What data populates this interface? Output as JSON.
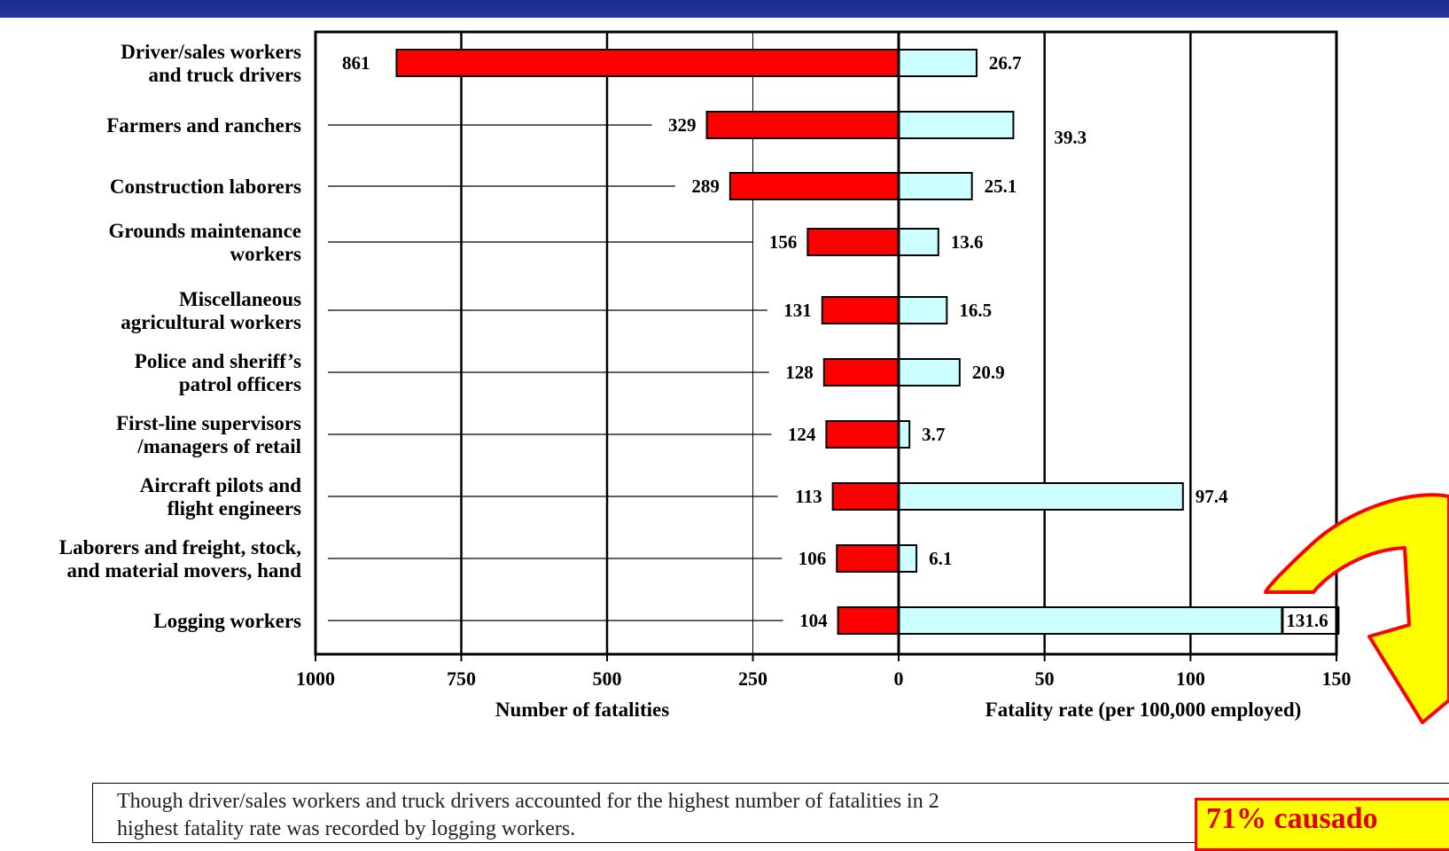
{
  "chart_data": {
    "type": "bar",
    "orientation": "horizontal",
    "layout": "back-to-back",
    "categories": [
      [
        "Driver/sales workers",
        "and truck drivers"
      ],
      [
        "Farmers and ranchers"
      ],
      [
        "Construction laborers"
      ],
      [
        "Grounds maintenance",
        "workers"
      ],
      [
        "Miscellaneous",
        "agricultural workers"
      ],
      [
        "Police and sheriff’s",
        "patrol officers"
      ],
      [
        "First-line supervisors",
        "/managers of retail"
      ],
      [
        "Aircraft pilots and",
        "flight engineers"
      ],
      [
        "Laborers and freight, stock,",
        "and material movers, hand"
      ],
      [
        "Logging workers"
      ]
    ],
    "series": [
      {
        "side": "left",
        "color": "#ff0000",
        "values": [
          861,
          329,
          289,
          156,
          131,
          128,
          124,
          113,
          106,
          104
        ],
        "labels": [
          "861",
          "329",
          "289",
          "156",
          "131",
          "128",
          "124",
          "113",
          "106",
          "104"
        ]
      },
      {
        "side": "right",
        "color": "#ccffff",
        "values": [
          26.7,
          39.3,
          25.1,
          13.6,
          16.5,
          20.9,
          3.7,
          97.4,
          6.1,
          131.6
        ],
        "labels": [
          "26.7",
          "39.3",
          "25.1",
          "13.6",
          "16.5",
          "20.9",
          "3.7",
          "97.4",
          "6.1",
          "131.6"
        ]
      }
    ],
    "left_axis": {
      "label": "Number of fatalities",
      "range": [
        1000,
        0
      ],
      "ticks": [
        "1000",
        "750",
        "500",
        "250",
        "0"
      ]
    },
    "right_axis": {
      "label": "Fatality rate (per 100,000 employed)",
      "range": [
        0,
        150
      ],
      "ticks": [
        "50",
        "100",
        "150"
      ]
    },
    "grid": true
  },
  "caption": {
    "line1": "Though driver/sales workers and truck drivers accounted for the highest number of fatalities in 2",
    "line2": "highest fatality rate was recorded by logging workers."
  },
  "callout": {
    "text": "71% causado",
    "colors": {
      "fill": "#ffff00",
      "stroke": "#ff0000",
      "text": "#e00000"
    }
  },
  "colors": {
    "topbar": "#1a2a8c"
  }
}
